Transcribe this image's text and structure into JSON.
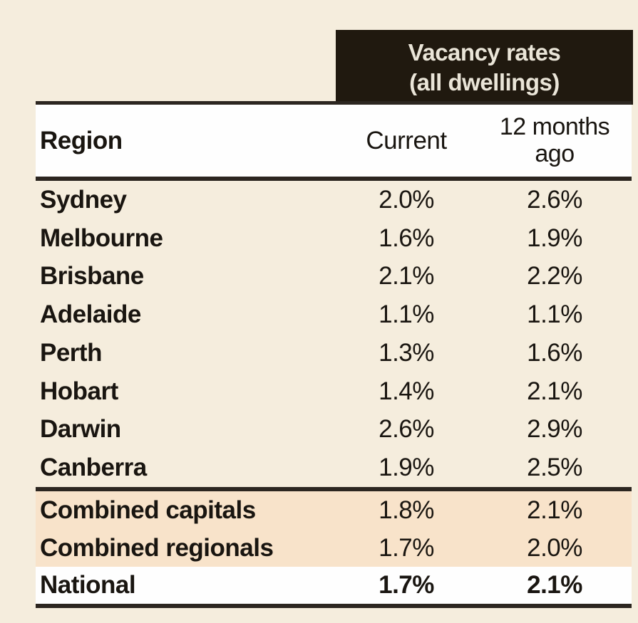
{
  "colors": {
    "page_background": "#f5eddd",
    "group_header_background": "#20190f",
    "group_header_text": "#eae5d8",
    "summary_row_background": "#f8e3ca",
    "white_band_background": "#fefefe",
    "text": "#191510",
    "rule": "#2c2620"
  },
  "table": {
    "group_header": {
      "line1": "Vacancy rates",
      "line2": "(all dwellings)"
    },
    "columns": {
      "region": "Region",
      "current": "Current",
      "ago": "12 months ago"
    },
    "rows": [
      {
        "region": "Sydney",
        "current": "2.0%",
        "ago": "2.6%"
      },
      {
        "region": "Melbourne",
        "current": "1.6%",
        "ago": "1.9%"
      },
      {
        "region": "Brisbane",
        "current": "2.1%",
        "ago": "2.2%"
      },
      {
        "region": "Adelaide",
        "current": "1.1%",
        "ago": "1.1%"
      },
      {
        "region": "Perth",
        "current": "1.3%",
        "ago": "1.6%"
      },
      {
        "region": "Hobart",
        "current": "1.4%",
        "ago": "2.1%"
      },
      {
        "region": "Darwin",
        "current": "2.6%",
        "ago": "2.9%"
      },
      {
        "region": "Canberra",
        "current": "1.9%",
        "ago": "2.5%"
      }
    ],
    "summary_rows": [
      {
        "region": "Combined capitals",
        "current": "1.8%",
        "ago": "2.1%"
      },
      {
        "region": "Combined regionals",
        "current": "1.7%",
        "ago": "2.0%"
      }
    ],
    "total_row": {
      "region": "National",
      "current": "1.7%",
      "ago": "2.1%"
    }
  },
  "chart_data": {
    "type": "table",
    "title": "Vacancy rates (all dwellings)",
    "columns": [
      "Region",
      "Current",
      "12 months ago"
    ],
    "rows": [
      [
        "Sydney",
        "2.0%",
        "2.6%"
      ],
      [
        "Melbourne",
        "1.6%",
        "1.9%"
      ],
      [
        "Brisbane",
        "2.1%",
        "2.2%"
      ],
      [
        "Adelaide",
        "1.1%",
        "1.1%"
      ],
      [
        "Perth",
        "1.3%",
        "1.6%"
      ],
      [
        "Hobart",
        "1.4%",
        "2.1%"
      ],
      [
        "Darwin",
        "2.6%",
        "2.9%"
      ],
      [
        "Canberra",
        "1.9%",
        "2.5%"
      ],
      [
        "Combined capitals",
        "1.8%",
        "2.1%"
      ],
      [
        "Combined regionals",
        "1.7%",
        "2.0%"
      ],
      [
        "National",
        "1.7%",
        "2.1%"
      ]
    ]
  }
}
